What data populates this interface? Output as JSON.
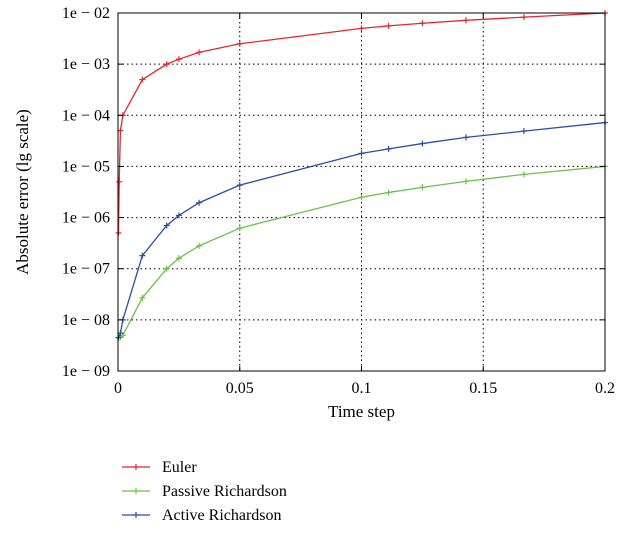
{
  "chart_data": {
    "type": "line",
    "title": "",
    "xlabel": "Time step",
    "ylabel": "Absolute error (lg scale)",
    "xlim": [
      0,
      0.2
    ],
    "ylim": [
      1e-09,
      0.01
    ],
    "yscale": "log",
    "grid": true,
    "grid_style": "dotted",
    "legend_position": "bottom-left, below plot",
    "x_ticks": [
      0,
      0.05,
      0.1,
      0.15,
      0.2
    ],
    "x_tick_labels": [
      "0",
      "0.05",
      "0.1",
      "0.15",
      "0.2"
    ],
    "y_ticks": [
      1e-09,
      1e-08,
      1e-07,
      1e-06,
      1e-05,
      0.0001,
      0.001,
      0.01
    ],
    "y_tick_labels": [
      "1e − 09",
      "1e − 08",
      "1e − 07",
      "1e − 06",
      "1e − 05",
      "1e − 04",
      "1e − 03",
      "1e − 02"
    ],
    "series": [
      {
        "name": "Euler",
        "color": "#e8262b",
        "x": [
          0.0002,
          0.0005,
          0.001,
          0.002,
          0.01,
          0.02,
          0.025,
          0.0333,
          0.05,
          0.1,
          0.1111,
          0.125,
          0.1429,
          0.1667,
          0.2
        ],
        "y": [
          5e-07,
          5e-06,
          5e-05,
          0.0001,
          0.0005,
          0.001,
          0.00125,
          0.0017,
          0.0025,
          0.005,
          0.0056,
          0.0063,
          0.0072,
          0.0083,
          0.01
        ]
      },
      {
        "name": "Passive Richardson",
        "color": "#6cc24a",
        "x": [
          0.0002,
          0.001,
          0.002,
          0.01,
          0.02,
          0.025,
          0.0333,
          0.05,
          0.1,
          0.1111,
          0.125,
          0.1429,
          0.1667,
          0.2
        ],
        "y": [
          4.5e-09,
          4.6e-09,
          5e-09,
          2.7e-08,
          1e-07,
          1.6e-07,
          2.8e-07,
          6.2e-07,
          2.5e-06,
          3.1e-06,
          3.9e-06,
          5.1e-06,
          7e-06,
          1e-05
        ]
      },
      {
        "name": "Active Richardson",
        "color": "#2b4fa0",
        "x": [
          0.0002,
          0.001,
          0.002,
          0.01,
          0.02,
          0.025,
          0.0333,
          0.05,
          0.1,
          0.1111,
          0.125,
          0.1429,
          0.1667,
          0.2
        ],
        "y": [
          4.5e-09,
          5.5e-09,
          1e-08,
          1.8e-07,
          7e-07,
          1.1e-06,
          1.95e-06,
          4.3e-06,
          1.8e-05,
          2.2e-05,
          2.8e-05,
          3.7e-05,
          4.9e-05,
          7.2e-05
        ]
      }
    ]
  }
}
